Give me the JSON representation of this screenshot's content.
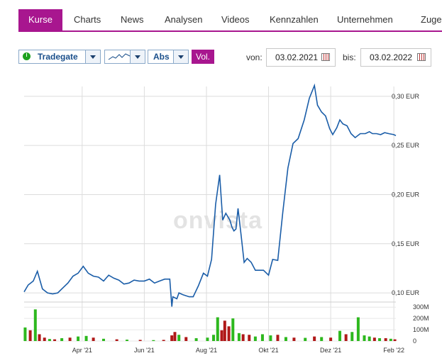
{
  "tabs": [
    "Kurse",
    "Charts",
    "News",
    "Analysen",
    "Videos",
    "Kennzahlen",
    "Unternehmen",
    "Zugehö"
  ],
  "toolbar": {
    "exchange": "Tradegate",
    "mode": "Abs",
    "vol_label": "Vol.",
    "from_label": "von:",
    "from_date": "03.02.2021",
    "to_label": "bis:",
    "to_date": "03.02.2022",
    "icons": [
      "status-icon",
      "line-chart-icon",
      "calendar-icon"
    ]
  },
  "watermark": "onvista",
  "colors": {
    "accent": "#a8168f",
    "line": "#1a5da8",
    "vol_up": "#2db81e",
    "vol_down": "#b01818"
  },
  "chart_data": {
    "type": "line",
    "currency": "EUR",
    "x_tick_labels": [
      "Apr '21",
      "Jun '21",
      "Aug '21",
      "Okt '21",
      "Dez '21",
      "Feb '22"
    ],
    "x_tick_dates": [
      "2021-04-01",
      "2021-06-01",
      "2021-08-01",
      "2021-10-01",
      "2021-12-01",
      "2022-02-01"
    ],
    "y_ticks": [
      0.1,
      0.15,
      0.2,
      0.25,
      0.3
    ],
    "y_tick_labels": [
      "0,10 EUR",
      "0,15 EUR",
      "0,20 EUR",
      "0,25 EUR",
      "0,30 EUR"
    ],
    "ylim": [
      0.095,
      0.31
    ],
    "grid": true,
    "price_series": {
      "x": [
        "2021-02-03",
        "2021-02-07",
        "2021-02-12",
        "2021-02-16",
        "2021-02-21",
        "2021-02-26",
        "2021-03-03",
        "2021-03-08",
        "2021-03-13",
        "2021-03-18",
        "2021-03-23",
        "2021-03-28",
        "2021-04-02",
        "2021-04-07",
        "2021-04-12",
        "2021-04-17",
        "2021-04-22",
        "2021-04-27",
        "2021-05-02",
        "2021-05-07",
        "2021-05-12",
        "2021-05-17",
        "2021-05-22",
        "2021-05-27",
        "2021-06-01",
        "2021-06-06",
        "2021-06-11",
        "2021-06-16",
        "2021-06-21",
        "2021-06-26",
        "2021-06-28",
        "2021-06-29",
        "2021-07-03",
        "2021-07-05",
        "2021-07-09",
        "2021-07-15",
        "2021-07-19",
        "2021-07-24",
        "2021-07-29",
        "2021-08-02",
        "2021-08-06",
        "2021-08-10",
        "2021-08-14",
        "2021-08-17",
        "2021-08-20",
        "2021-08-24",
        "2021-08-26",
        "2021-08-28",
        "2021-08-30",
        "2021-09-01",
        "2021-09-04",
        "2021-09-07",
        "2021-09-10",
        "2021-09-14",
        "2021-09-18",
        "2021-09-22",
        "2021-09-26",
        "2021-10-01",
        "2021-10-05",
        "2021-10-10",
        "2021-10-15",
        "2021-10-20",
        "2021-10-25",
        "2021-10-30",
        "2021-11-05",
        "2021-11-10",
        "2021-11-15",
        "2021-11-18",
        "2021-11-22",
        "2021-11-26",
        "2021-11-30",
        "2021-12-03",
        "2021-12-07",
        "2021-12-10",
        "2021-12-13",
        "2021-12-17",
        "2021-12-21",
        "2021-12-25",
        "2021-12-30",
        "2022-01-04",
        "2022-01-08",
        "2022-01-11",
        "2022-01-15",
        "2022-01-19",
        "2022-01-23",
        "2022-01-27",
        "2022-02-01",
        "2022-02-03"
      ],
      "values": [
        0.101,
        0.108,
        0.112,
        0.122,
        0.104,
        0.1,
        0.099,
        0.1,
        0.105,
        0.11,
        0.117,
        0.12,
        0.127,
        0.12,
        0.117,
        0.116,
        0.112,
        0.118,
        0.115,
        0.113,
        0.109,
        0.11,
        0.113,
        0.112,
        0.112,
        0.114,
        0.11,
        0.112,
        0.114,
        0.114,
        0.086,
        0.096,
        0.094,
        0.1,
        0.098,
        0.096,
        0.096,
        0.107,
        0.12,
        0.117,
        0.134,
        0.19,
        0.22,
        0.174,
        0.181,
        0.174,
        0.167,
        0.163,
        0.165,
        0.186,
        0.159,
        0.131,
        0.135,
        0.131,
        0.123,
        0.123,
        0.123,
        0.118,
        0.134,
        0.133,
        0.182,
        0.227,
        0.252,
        0.257,
        0.276,
        0.298,
        0.311,
        0.291,
        0.284,
        0.28,
        0.267,
        0.261,
        0.268,
        0.276,
        0.272,
        0.27,
        0.262,
        0.258,
        0.262,
        0.262,
        0.264,
        0.262,
        0.262,
        0.261,
        0.263,
        0.262,
        0.261,
        0.26
      ]
    },
    "volume": {
      "ticks": [
        0,
        100,
        200,
        300
      ],
      "tick_labels": [
        "0",
        "100M",
        "200M",
        "300M"
      ],
      "max": 320,
      "bars": [
        {
          "x": "2021-02-04",
          "v": 120,
          "d": "up"
        },
        {
          "x": "2021-02-09",
          "v": 95,
          "d": "down"
        },
        {
          "x": "2021-02-14",
          "v": 280,
          "d": "up"
        },
        {
          "x": "2021-02-18",
          "v": 60,
          "d": "down"
        },
        {
          "x": "2021-02-23",
          "v": 30,
          "d": "down"
        },
        {
          "x": "2021-02-28",
          "v": 18,
          "d": "up"
        },
        {
          "x": "2021-03-05",
          "v": 15,
          "d": "down"
        },
        {
          "x": "2021-03-12",
          "v": 25,
          "d": "up"
        },
        {
          "x": "2021-03-20",
          "v": 30,
          "d": "down"
        },
        {
          "x": "2021-03-28",
          "v": 40,
          "d": "up"
        },
        {
          "x": "2021-04-05",
          "v": 45,
          "d": "up"
        },
        {
          "x": "2021-04-12",
          "v": 30,
          "d": "down"
        },
        {
          "x": "2021-04-22",
          "v": 20,
          "d": "up"
        },
        {
          "x": "2021-05-05",
          "v": 15,
          "d": "down"
        },
        {
          "x": "2021-05-15",
          "v": 12,
          "d": "up"
        },
        {
          "x": "2021-05-28",
          "v": 10,
          "d": "down"
        },
        {
          "x": "2021-06-10",
          "v": 8,
          "d": "up"
        },
        {
          "x": "2021-06-20",
          "v": 10,
          "d": "down"
        },
        {
          "x": "2021-06-28",
          "v": 50,
          "d": "down"
        },
        {
          "x": "2021-07-01",
          "v": 80,
          "d": "down"
        },
        {
          "x": "2021-07-05",
          "v": 55,
          "d": "up"
        },
        {
          "x": "2021-07-12",
          "v": 35,
          "d": "down"
        },
        {
          "x": "2021-07-22",
          "v": 25,
          "d": "up"
        },
        {
          "x": "2021-08-02",
          "v": 30,
          "d": "up"
        },
        {
          "x": "2021-08-08",
          "v": 55,
          "d": "up"
        },
        {
          "x": "2021-08-12",
          "v": 210,
          "d": "up"
        },
        {
          "x": "2021-08-16",
          "v": 95,
          "d": "down"
        },
        {
          "x": "2021-08-19",
          "v": 180,
          "d": "down"
        },
        {
          "x": "2021-08-23",
          "v": 130,
          "d": "down"
        },
        {
          "x": "2021-08-27",
          "v": 200,
          "d": "up"
        },
        {
          "x": "2021-09-02",
          "v": 70,
          "d": "up"
        },
        {
          "x": "2021-09-06",
          "v": 60,
          "d": "down"
        },
        {
          "x": "2021-09-12",
          "v": 55,
          "d": "down"
        },
        {
          "x": "2021-09-18",
          "v": 40,
          "d": "up"
        },
        {
          "x": "2021-09-25",
          "v": 60,
          "d": "up"
        },
        {
          "x": "2021-10-03",
          "v": 50,
          "d": "up"
        },
        {
          "x": "2021-10-10",
          "v": 55,
          "d": "down"
        },
        {
          "x": "2021-10-18",
          "v": 35,
          "d": "up"
        },
        {
          "x": "2021-10-26",
          "v": 30,
          "d": "down"
        },
        {
          "x": "2021-11-06",
          "v": 28,
          "d": "up"
        },
        {
          "x": "2021-11-15",
          "v": 40,
          "d": "down"
        },
        {
          "x": "2021-11-22",
          "v": 35,
          "d": "up"
        },
        {
          "x": "2021-12-01",
          "v": 30,
          "d": "down"
        },
        {
          "x": "2021-12-10",
          "v": 90,
          "d": "up"
        },
        {
          "x": "2021-12-16",
          "v": 60,
          "d": "down"
        },
        {
          "x": "2021-12-22",
          "v": 80,
          "d": "up"
        },
        {
          "x": "2021-12-28",
          "v": 210,
          "d": "up"
        },
        {
          "x": "2022-01-03",
          "v": 50,
          "d": "up"
        },
        {
          "x": "2022-01-08",
          "v": 40,
          "d": "up"
        },
        {
          "x": "2022-01-13",
          "v": 30,
          "d": "down"
        },
        {
          "x": "2022-01-18",
          "v": 25,
          "d": "up"
        },
        {
          "x": "2022-01-24",
          "v": 25,
          "d": "down"
        },
        {
          "x": "2022-01-29",
          "v": 20,
          "d": "up"
        },
        {
          "x": "2022-02-02",
          "v": 15,
          "d": "down"
        }
      ]
    }
  }
}
